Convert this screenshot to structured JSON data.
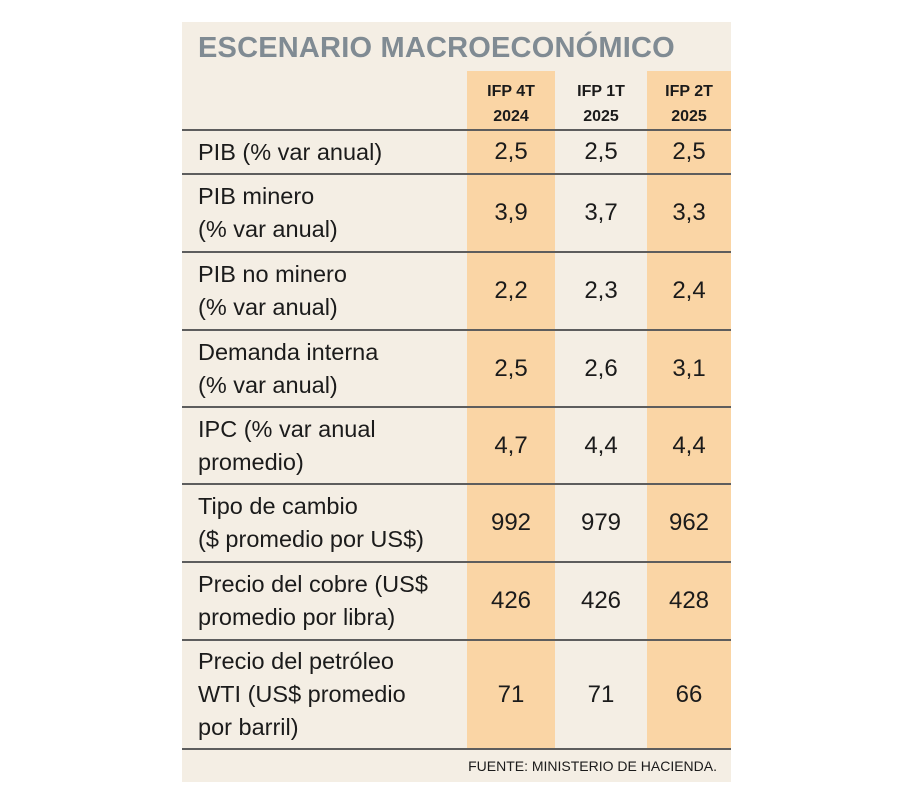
{
  "colors": {
    "panel_background": "#f4eee4",
    "highlight_column": "#fad5a5",
    "title": "#808b93",
    "text": "#1b1b1b",
    "rule": "#5d5d5d"
  },
  "chart_data": {
    "type": "table",
    "title": "ESCENARIO MACROECONÓMICO",
    "columns": [
      {
        "line1": "IFP 4T",
        "line2": "2024",
        "highlighted": true
      },
      {
        "line1": "IFP 1T",
        "line2": "2025",
        "highlighted": false
      },
      {
        "line1": "IFP 2T",
        "line2": "2025",
        "highlighted": true
      }
    ],
    "rows": [
      {
        "label_lines": [
          "PIB (% var anual)"
        ],
        "values": [
          "2,5",
          "2,5",
          "2,5"
        ]
      },
      {
        "label_lines": [
          "PIB minero",
          "(% var anual)"
        ],
        "values": [
          "3,9",
          "3,7",
          "3,3"
        ]
      },
      {
        "label_lines": [
          "PIB no minero",
          "(% var anual)"
        ],
        "values": [
          "2,2",
          "2,3",
          "2,4"
        ]
      },
      {
        "label_lines": [
          "Demanda interna",
          "(% var anual)"
        ],
        "values": [
          "2,5",
          "2,6",
          "3,1"
        ]
      },
      {
        "label_lines": [
          "IPC (% var anual",
          "promedio)"
        ],
        "values": [
          "4,7",
          "4,4",
          "4,4"
        ]
      },
      {
        "label_lines": [
          "Tipo de cambio",
          "($ promedio por US$)"
        ],
        "values": [
          "992",
          "979",
          "962"
        ]
      },
      {
        "label_lines": [
          "Precio del cobre (US$",
          "promedio por libra)"
        ],
        "values": [
          "426",
          "426",
          "428"
        ]
      },
      {
        "label_lines": [
          "Precio del petróleo",
          "WTI (US$ promedio",
          "por barril)"
        ],
        "values": [
          "71",
          "71",
          "66"
        ]
      }
    ],
    "source": "FUENTE: MINISTERIO DE HACIENDA."
  }
}
